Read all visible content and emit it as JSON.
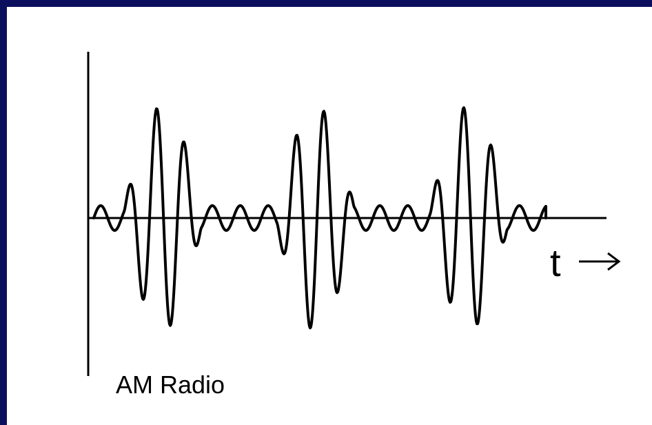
{
  "diagram": {
    "time_axis_label": "t",
    "caption": "AM Radio",
    "signal_type": "amplitude-modulated carrier wave"
  },
  "colors": {
    "frame": "#0c0e5e",
    "background": "#ffffff",
    "ink": "#000000"
  }
}
